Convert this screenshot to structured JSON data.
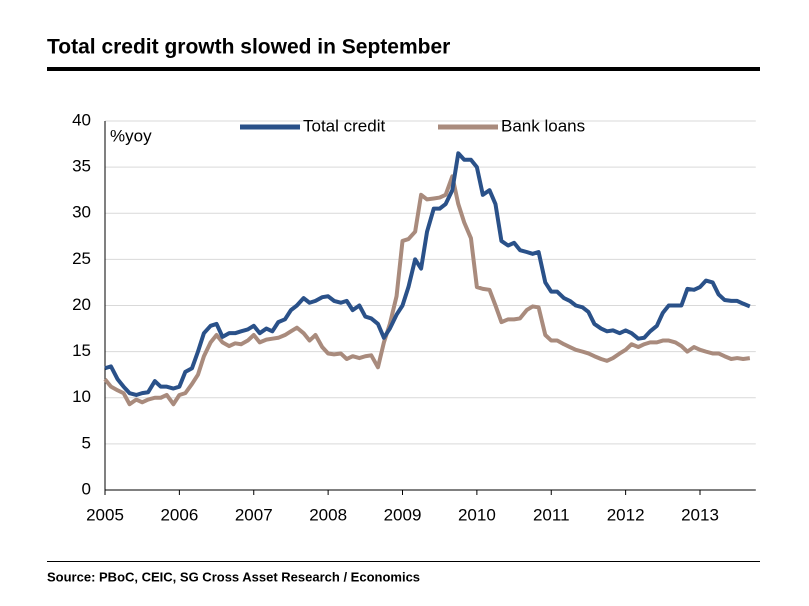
{
  "chart_data": {
    "type": "line",
    "title": "Total credit growth slowed in September",
    "y_label": "%yoy",
    "source": "Source: PBoC, CEIC, SG Cross Asset Research / Economics",
    "x": [
      2005,
      2005.08,
      2005.17,
      2005.25,
      2005.33,
      2005.42,
      2005.5,
      2005.58,
      2005.67,
      2005.75,
      2005.83,
      2005.92,
      2006,
      2006.08,
      2006.17,
      2006.25,
      2006.33,
      2006.42,
      2006.5,
      2006.58,
      2006.67,
      2006.75,
      2006.83,
      2006.92,
      2007,
      2007.08,
      2007.17,
      2007.25,
      2007.33,
      2007.42,
      2007.5,
      2007.58,
      2007.67,
      2007.75,
      2007.83,
      2007.92,
      2008,
      2008.08,
      2008.17,
      2008.25,
      2008.33,
      2008.42,
      2008.5,
      2008.58,
      2008.67,
      2008.75,
      2008.83,
      2008.92,
      2009,
      2009.08,
      2009.17,
      2009.25,
      2009.33,
      2009.42,
      2009.5,
      2009.58,
      2009.67,
      2009.75,
      2009.83,
      2009.92,
      2010,
      2010.08,
      2010.17,
      2010.25,
      2010.33,
      2010.42,
      2010.5,
      2010.58,
      2010.67,
      2010.75,
      2010.83,
      2010.92,
      2011,
      2011.08,
      2011.17,
      2011.25,
      2011.33,
      2011.42,
      2011.5,
      2011.58,
      2011.67,
      2011.75,
      2011.83,
      2011.92,
      2012,
      2012.08,
      2012.17,
      2012.25,
      2012.33,
      2012.42,
      2012.5,
      2012.58,
      2012.67,
      2012.75,
      2012.83,
      2012.92,
      2013,
      2013.08,
      2013.17,
      2013.25,
      2013.33,
      2013.42,
      2013.5,
      2013.58,
      2013.67
    ],
    "series": [
      {
        "name": "Total credit",
        "color": "#2a5189",
        "values": [
          13.2,
          13.4,
          12,
          11.2,
          10.5,
          10.3,
          10.5,
          10.6,
          11.8,
          11.2,
          11.2,
          11,
          11.2,
          12.8,
          13.2,
          15,
          17,
          17.8,
          18,
          16.6,
          17,
          17,
          17.2,
          17.4,
          17.8,
          17,
          17.5,
          17.2,
          18.2,
          18.5,
          19.5,
          20,
          20.8,
          20.3,
          20.5,
          20.9,
          21,
          20.5,
          20.3,
          20.5,
          19.5,
          20,
          18.8,
          18.6,
          18,
          16.5,
          17.5,
          19,
          20,
          22,
          25,
          24,
          28,
          30.5,
          30.5,
          31,
          32.5,
          36.5,
          35.8,
          35.8,
          35,
          32,
          32.5,
          31,
          27,
          26.5,
          26.8,
          26,
          25.8,
          25.6,
          25.8,
          22.5,
          21.5,
          21.5,
          20.8,
          20.5,
          20,
          19.8,
          19.3,
          18,
          17.5,
          17.2,
          17.3,
          17,
          17.3,
          17,
          16.4,
          16.5,
          17.2,
          17.8,
          19.2,
          20,
          20,
          20,
          21.8,
          21.7,
          22,
          22.7,
          22.5,
          21.2,
          20.6,
          20.5,
          20.5,
          20.2,
          19.9
        ]
      },
      {
        "name": "Bank loans",
        "color": "#a98b7d",
        "values": [
          12,
          11.2,
          10.8,
          10.5,
          9.3,
          9.8,
          9.5,
          9.8,
          10,
          10,
          10.3,
          9.3,
          10.3,
          10.5,
          11.5,
          12.5,
          14.5,
          16,
          16.8,
          16,
          15.6,
          15.9,
          15.8,
          16.2,
          16.8,
          16,
          16.3,
          16.4,
          16.5,
          16.8,
          17.2,
          17.6,
          17,
          16.2,
          16.8,
          15.5,
          14.8,
          14.7,
          14.8,
          14.2,
          14.5,
          14.3,
          14.5,
          14.6,
          13.3,
          16,
          18,
          21,
          27,
          27.2,
          28,
          32,
          31.5,
          31.6,
          31.7,
          32,
          34,
          31,
          29,
          27.3,
          22,
          21.8,
          21.7,
          20,
          18.2,
          18.5,
          18.5,
          18.6,
          19.5,
          19.9,
          19.8,
          16.8,
          16.2,
          16.2,
          15.8,
          15.5,
          15.2,
          15,
          14.8,
          14.5,
          14.2,
          14,
          14.3,
          14.8,
          15.2,
          15.8,
          15.5,
          15.8,
          16,
          16,
          16.2,
          16.2,
          16,
          15.6,
          15,
          15.5,
          15.2,
          15,
          14.8,
          14.8,
          14.5,
          14.2,
          14.3,
          14.2,
          14.3
        ]
      }
    ],
    "xlim": [
      2005,
      2013.75
    ],
    "xticks": [
      2005,
      2006,
      2007,
      2008,
      2009,
      2010,
      2011,
      2012,
      2013
    ],
    "ylim": [
      0,
      40
    ],
    "yticks": [
      0,
      5,
      10,
      15,
      20,
      25,
      30,
      35,
      40
    ],
    "grid": true
  }
}
